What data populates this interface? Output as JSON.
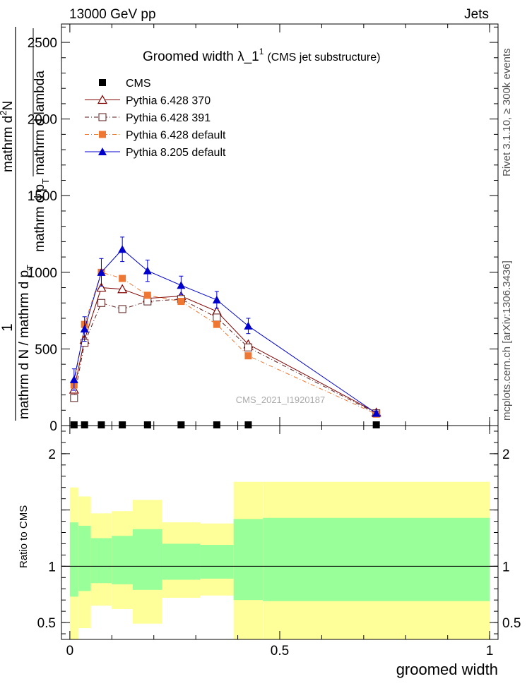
{
  "header": {
    "left": "13000 GeV pp",
    "right": "Jets"
  },
  "side": {
    "rivet": "Rivet 3.1.10, ≥ 300k events",
    "mcplots": "mcplots.cern.ch [arXiv:1306.3436]"
  },
  "chart_data": [
    {
      "type": "line",
      "title_main": "Groomed width  λ_1",
      "title_sup": "1",
      "title_sub": "(CMS jet substructure)",
      "ylabel_numerator_a": "1",
      "ylabel_numerator_b": "mathrm d",
      "ylabel_numerator_c": "2",
      "ylabel_numerator_d": "N",
      "ylabel_denom_1": "mathrm d N / mathrm d p",
      "ylabel_denom_1_sub": "T",
      "ylabel_frac_a": "mathrm d p",
      "ylabel_frac_a_sub": "T",
      "ylabel_frac_b": "mathrm d lambda",
      "watermark": "CMS_2021_I1920187",
      "xlim": [
        -0.02,
        1.02
      ],
      "ylim": [
        0,
        2620
      ],
      "yticks": [
        {
          "v": 0,
          "label": "0"
        },
        {
          "v": 500,
          "label": "500"
        },
        {
          "v": 1000,
          "label": "1000"
        },
        {
          "v": 1500,
          "label": "1500"
        },
        {
          "v": 2000,
          "label": "2000"
        },
        {
          "v": 2500,
          "label": "2500"
        }
      ],
      "xbins_edges": [
        0,
        0.02,
        0.05,
        0.1,
        0.15,
        0.22,
        0.31,
        0.39,
        0.46,
        1.0
      ],
      "x_centers": [
        0.01,
        0.035,
        0.075,
        0.125,
        0.185,
        0.265,
        0.35,
        0.425,
        0.73
      ],
      "cms": [
        0,
        0,
        0,
        0,
        0,
        0,
        0,
        0,
        0
      ],
      "series": [
        {
          "name": "CMS",
          "marker": "square-filled",
          "color": "#000000",
          "dash": "",
          "values": [
            0,
            0,
            0,
            0,
            0,
            0,
            0,
            0,
            0
          ],
          "errors": []
        },
        {
          "name": "Pythia 6.428 370",
          "marker": "triangle-open",
          "color": "#800000",
          "dash": "",
          "values": [
            235,
            560,
            900,
            890,
            830,
            845,
            745,
            530,
            85
          ],
          "errors": []
        },
        {
          "name": "Pythia 6.428 391",
          "marker": "square-open",
          "color": "#5a1a1a",
          "dash": "6,3,1,3",
          "values": [
            180,
            540,
            800,
            760,
            810,
            825,
            705,
            510,
            80
          ],
          "errors": []
        },
        {
          "name": "Pythia 6.428 default",
          "marker": "square-filled",
          "color": "#ee7733",
          "dash": "6,3,1,3",
          "values": [
            265,
            660,
            1000,
            960,
            850,
            810,
            660,
            455,
            75
          ],
          "errors": []
        },
        {
          "name": "Pythia 8.205 default",
          "marker": "triangle-filled",
          "color": "#0000cc",
          "dash": "",
          "values": [
            300,
            630,
            1000,
            1150,
            1010,
            915,
            820,
            650,
            80
          ],
          "errors": [
            70,
            80,
            90,
            80,
            70,
            60,
            55,
            50,
            15
          ]
        }
      ]
    },
    {
      "type": "area",
      "ylabel": "Ratio to CMS",
      "xlabel": "groomed width",
      "xlim": [
        -0.02,
        1.02
      ],
      "ylim": [
        0.35,
        2.25
      ],
      "yticks": [
        {
          "v": 0.5,
          "label": "0.5"
        },
        {
          "v": 1,
          "label": "1"
        },
        {
          "v": 1.5,
          "label": ""
        },
        {
          "v": 2,
          "label": "2"
        }
      ],
      "xticks": [
        {
          "v": 0,
          "label": "0"
        },
        {
          "v": 0.5,
          "label": "0.5"
        },
        {
          "v": 1,
          "label": "1"
        }
      ],
      "bands": [
        {
          "x0": 0.0,
          "x1": 0.02,
          "y_lo": 0.35,
          "y_hi": 1.7,
          "g_lo": 0.73,
          "g_hi": 1.39
        },
        {
          "x0": 0.02,
          "x1": 0.05,
          "y_lo": 0.45,
          "y_hi": 1.62,
          "g_lo": 0.78,
          "g_hi": 1.36
        },
        {
          "x0": 0.05,
          "x1": 0.1,
          "y_lo": 0.65,
          "y_hi": 1.47,
          "g_lo": 0.85,
          "g_hi": 1.25
        },
        {
          "x0": 0.1,
          "x1": 0.15,
          "y_lo": 0.62,
          "y_hi": 1.49,
          "g_lo": 0.84,
          "g_hi": 1.27
        },
        {
          "x0": 0.15,
          "x1": 0.22,
          "y_lo": 0.49,
          "y_hi": 1.59,
          "g_lo": 0.79,
          "g_hi": 1.33
        },
        {
          "x0": 0.22,
          "x1": 0.31,
          "y_lo": 0.72,
          "y_hi": 1.39,
          "g_lo": 0.88,
          "g_hi": 1.2
        },
        {
          "x0": 0.31,
          "x1": 0.39,
          "y_lo": 0.74,
          "y_hi": 1.38,
          "g_lo": 0.89,
          "g_hi": 1.19
        },
        {
          "x0": 0.39,
          "x1": 0.46,
          "y_lo": 0.35,
          "y_hi": 1.75,
          "g_lo": 0.7,
          "g_hi": 1.42
        },
        {
          "x0": 0.46,
          "x1": 1.0,
          "y_lo": 0.35,
          "y_hi": 1.75,
          "g_lo": 0.69,
          "g_hi": 1.43
        }
      ],
      "reference_line": 1
    }
  ],
  "colors": {
    "yellow_band": "#ffff99",
    "green_band": "#99ff99"
  }
}
